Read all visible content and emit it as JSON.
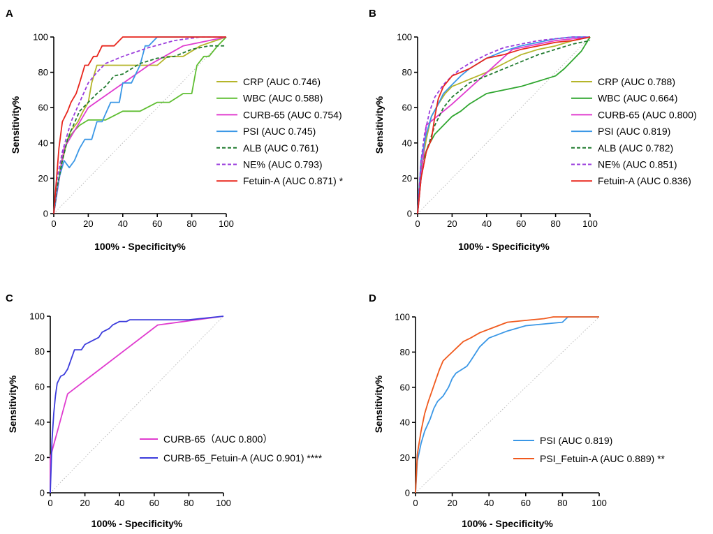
{
  "chart_data": [
    {
      "panel": "A",
      "type": "line",
      "xlabel": "100% - Specificity%",
      "ylabel": "Sensitivity%",
      "xlim": [
        0,
        100
      ],
      "ylim": [
        0,
        100
      ],
      "xticks": [
        "0",
        "20",
        "40",
        "60",
        "80",
        "100"
      ],
      "yticks": [
        "0",
        "20",
        "40",
        "60",
        "80",
        "100"
      ],
      "reference_line": true,
      "legend_position": "right",
      "series": [
        {
          "name": "CRP (AUC 0.746)",
          "color": "#b5b52a",
          "dashed": false,
          "x": [
            0,
            2,
            5,
            8,
            10,
            14,
            17,
            20,
            22,
            25,
            30,
            35,
            40,
            45,
            50,
            60,
            66,
            75,
            85,
            100
          ],
          "y": [
            0,
            15,
            30,
            42,
            47,
            52,
            58,
            63,
            74,
            84,
            84,
            84,
            84,
            84,
            84,
            84,
            89,
            89,
            95,
            100
          ]
        },
        {
          "name": "WBC (AUC 0.588)",
          "color": "#5fbe32",
          "dashed": false,
          "x": [
            0,
            3,
            5,
            8,
            12,
            15,
            20,
            30,
            40,
            50,
            60,
            67,
            75,
            80,
            83,
            87,
            90,
            95,
            100
          ],
          "y": [
            0,
            20,
            32,
            42,
            47,
            50,
            53,
            53,
            58,
            58,
            63,
            63,
            68,
            68,
            84,
            89,
            89,
            95,
            100
          ]
        },
        {
          "name": "CURB-65 (AUC 0.754)",
          "color": "#e03ccf",
          "dashed": false,
          "x": [
            0,
            6,
            20,
            55,
            75,
            100
          ],
          "y": [
            0,
            37,
            60,
            84,
            95,
            100
          ]
        },
        {
          "name": "PSI (AUC 0.745)",
          "color": "#3a97e6",
          "dashed": false,
          "x": [
            0,
            3,
            6,
            9,
            12,
            15,
            18,
            22,
            25,
            28,
            33,
            38,
            40,
            45,
            50,
            53,
            55,
            60,
            70,
            100
          ],
          "y": [
            0,
            20,
            30,
            26,
            30,
            37,
            42,
            42,
            52,
            52,
            63,
            63,
            74,
            74,
            84,
            95,
            95,
            100,
            100,
            100
          ]
        },
        {
          "name": "ALB (AUC 0.761)",
          "color": "#1f7a2e",
          "dashed": true,
          "x": [
            0,
            2,
            5,
            8,
            10,
            15,
            20,
            25,
            30,
            35,
            40,
            50,
            60,
            70,
            80,
            90,
            100
          ],
          "y": [
            0,
            15,
            30,
            42,
            47,
            58,
            63,
            68,
            72,
            78,
            79,
            85,
            88,
            89,
            93,
            95,
            95
          ]
        },
        {
          "name": "NE% (AUC 0.793)",
          "color": "#9a3cdc",
          "dashed": true,
          "x": [
            0,
            2,
            5,
            10,
            15,
            20,
            25,
            30,
            40,
            55,
            70,
            85,
            100
          ],
          "y": [
            0,
            20,
            35,
            52,
            63,
            74,
            80,
            85,
            89,
            94,
            98,
            100,
            100
          ]
        },
        {
          "name": "Fetuin-A (AUC 0.871) *",
          "color": "#e8251c",
          "dashed": false,
          "x": [
            0,
            3,
            5,
            8,
            10,
            13,
            15,
            18,
            20,
            23,
            25,
            28,
            30,
            35,
            40,
            50,
            60,
            100
          ],
          "y": [
            0,
            37,
            52,
            58,
            63,
            68,
            74,
            84,
            84,
            89,
            89,
            95,
            95,
            95,
            100,
            100,
            100,
            100
          ]
        }
      ]
    },
    {
      "panel": "B",
      "type": "line",
      "xlabel": "100% - Specificity%",
      "ylabel": "Sensitivity%",
      "xlim": [
        0,
        100
      ],
      "ylim": [
        0,
        100
      ],
      "xticks": [
        "0",
        "20",
        "40",
        "60",
        "80",
        "100"
      ],
      "yticks": [
        "0",
        "20",
        "40",
        "60",
        "80",
        "100"
      ],
      "reference_line": true,
      "legend_position": "right",
      "series": [
        {
          "name": "CRP (AUC 0.788)",
          "color": "#b5b52a",
          "dashed": false,
          "x": [
            0,
            2,
            5,
            8,
            12,
            16,
            20,
            25,
            30,
            35,
            40,
            50,
            60,
            70,
            80,
            90,
            100
          ],
          "y": [
            0,
            25,
            42,
            55,
            62,
            68,
            72,
            74,
            76,
            78,
            80,
            85,
            90,
            93,
            95,
            98,
            100
          ]
        },
        {
          "name": "WBC (AUC 0.664)",
          "color": "#2fa62f",
          "dashed": false,
          "x": [
            0,
            1,
            3,
            6,
            10,
            15,
            20,
            25,
            30,
            35,
            40,
            50,
            60,
            70,
            80,
            85,
            90,
            95,
            100
          ],
          "y": [
            0,
            15,
            30,
            38,
            45,
            50,
            55,
            58,
            62,
            65,
            68,
            70,
            72,
            75,
            78,
            82,
            87,
            92,
            100
          ]
        },
        {
          "name": "CURB-65 (AUC 0.800)",
          "color": "#e03ccf",
          "dashed": false,
          "x": [
            0,
            5,
            20,
            55,
            80,
            100
          ],
          "y": [
            0,
            50,
            62,
            93,
            98,
            100
          ]
        },
        {
          "name": "PSI (AUC 0.819)",
          "color": "#3a97e6",
          "dashed": false,
          "x": [
            0,
            2,
            5,
            8,
            12,
            15,
            20,
            25,
            30,
            40,
            50,
            60,
            70,
            80,
            90,
            100
          ],
          "y": [
            0,
            30,
            45,
            55,
            62,
            68,
            73,
            78,
            82,
            88,
            92,
            95,
            97,
            99,
            100,
            100
          ]
        },
        {
          "name": "ALB (AUC 0.782)",
          "color": "#1f7a2e",
          "dashed": true,
          "x": [
            0,
            2,
            5,
            10,
            15,
            20,
            25,
            30,
            40,
            50,
            60,
            70,
            80,
            90,
            100
          ],
          "y": [
            0,
            20,
            35,
            50,
            60,
            66,
            70,
            74,
            78,
            82,
            86,
            90,
            93,
            96,
            98
          ]
        },
        {
          "name": "NE% (AUC 0.851)",
          "color": "#9a3cdc",
          "dashed": true,
          "x": [
            0,
            2,
            4,
            7,
            10,
            15,
            20,
            25,
            30,
            40,
            50,
            60,
            70,
            80,
            90,
            100
          ],
          "y": [
            0,
            30,
            45,
            58,
            66,
            73,
            78,
            82,
            85,
            90,
            94,
            96,
            98,
            99,
            100,
            100
          ]
        },
        {
          "name": "Fetuin-A (AUC 0.836)",
          "color": "#e8251c",
          "dashed": false,
          "x": [
            0,
            2,
            5,
            8,
            10,
            12,
            15,
            20,
            25,
            30,
            35,
            40,
            50,
            60,
            70,
            80,
            90,
            100
          ],
          "y": [
            0,
            20,
            35,
            42,
            55,
            65,
            72,
            78,
            80,
            82,
            85,
            88,
            90,
            93,
            95,
            97,
            98,
            100
          ]
        }
      ]
    },
    {
      "panel": "C",
      "type": "line",
      "xlabel": "100% - Specificity%",
      "ylabel": "Sensitivity%",
      "xlim": [
        0,
        100
      ],
      "ylim": [
        0,
        100
      ],
      "xticks": [
        "0",
        "20",
        "40",
        "60",
        "80",
        "100"
      ],
      "yticks": [
        "0",
        "20",
        "40",
        "60",
        "80",
        "100"
      ],
      "reference_line": true,
      "legend_position": "bottom-right",
      "series": [
        {
          "name": "CURB-65（AUC 0.800）",
          "color": "#e03ccf",
          "dashed": false,
          "x": [
            0,
            0,
            10,
            62,
            100
          ],
          "y": [
            0,
            20,
            56,
            95,
            100
          ]
        },
        {
          "name": "CURB-65_Fetuin-A (AUC 0.901) ****",
          "color": "#3c3cdc",
          "dashed": false,
          "x": [
            0,
            1,
            2,
            3,
            4,
            6,
            8,
            10,
            14,
            18,
            20,
            24,
            28,
            30,
            34,
            36,
            40,
            44,
            46,
            60,
            80,
            100
          ],
          "y": [
            0,
            30,
            45,
            55,
            62,
            66,
            67,
            70,
            81,
            81,
            84,
            86,
            88,
            91,
            93,
            95,
            97,
            97,
            98,
            98,
            98,
            100
          ]
        }
      ]
    },
    {
      "panel": "D",
      "type": "line",
      "xlabel": "100% - Specificity%",
      "ylabel": "Sensitivity%",
      "xlim": [
        0,
        100
      ],
      "ylim": [
        0,
        100
      ],
      "xticks": [
        "0",
        "20",
        "40",
        "60",
        "80",
        "100"
      ],
      "yticks": [
        "0",
        "20",
        "40",
        "60",
        "80",
        "100"
      ],
      "reference_line": true,
      "legend_position": "bottom-right",
      "series": [
        {
          "name": "PSI (AUC 0.819)",
          "color": "#3a97e6",
          "dashed": false,
          "x": [
            0,
            1,
            3,
            5,
            8,
            10,
            12,
            15,
            18,
            20,
            22,
            25,
            28,
            30,
            35,
            40,
            45,
            50,
            60,
            70,
            80,
            83,
            100
          ],
          "y": [
            0,
            18,
            28,
            35,
            42,
            48,
            52,
            55,
            60,
            65,
            68,
            70,
            72,
            75,
            83,
            88,
            90,
            92,
            95,
            96,
            97,
            100,
            100
          ]
        },
        {
          "name": "PSI_Fetuin-A (AUC 0.889) **",
          "color": "#f05a1e",
          "dashed": false,
          "x": [
            0,
            1,
            3,
            5,
            7,
            9,
            11,
            13,
            15,
            18,
            20,
            23,
            26,
            30,
            35,
            40,
            45,
            50,
            60,
            70,
            75,
            100
          ],
          "y": [
            0,
            22,
            35,
            45,
            52,
            58,
            64,
            70,
            75,
            78,
            80,
            83,
            86,
            88,
            91,
            93,
            95,
            97,
            98,
            99,
            100,
            100
          ]
        }
      ]
    }
  ]
}
